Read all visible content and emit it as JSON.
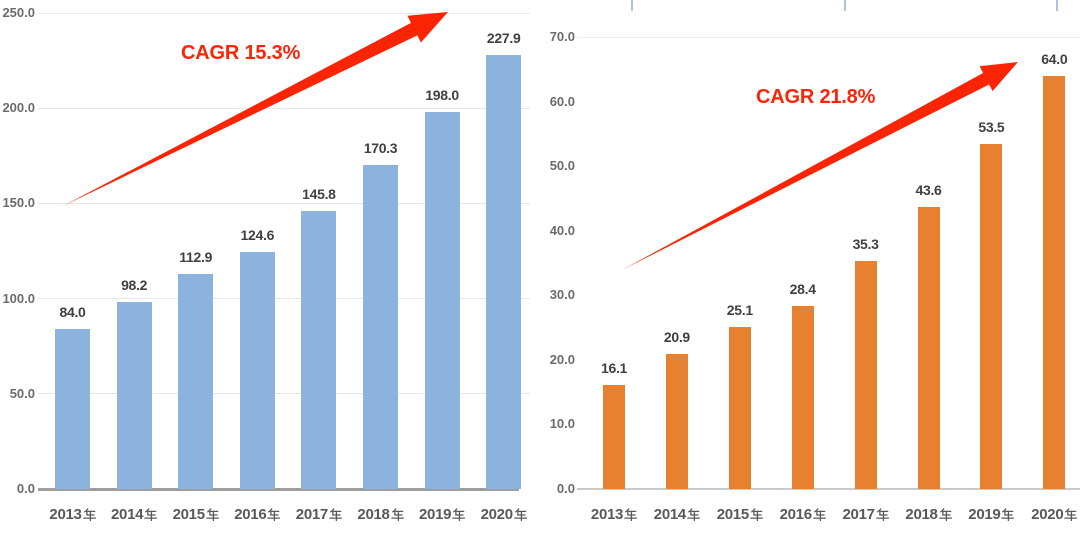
{
  "chart_data": [
    {
      "type": "bar",
      "title": "",
      "categories": [
        "2013年",
        "2014年",
        "2015年",
        "2016年",
        "2017年",
        "2018年",
        "2019年",
        "2020年"
      ],
      "values": [
        84.0,
        98.2,
        112.9,
        124.6,
        145.8,
        170.3,
        198.0,
        227.9
      ],
      "value_labels": [
        "84.0",
        "98.2",
        "112.9",
        "124.6",
        "145.8",
        "170.3",
        "198.0",
        "227.9"
      ],
      "annotation": "CAGR 15.3%",
      "xlabel": "",
      "ylabel": "",
      "ylim": [
        0,
        250
      ],
      "ytick_step": 50,
      "ytick_labels": [
        "0.0",
        "50.0",
        "100.0",
        "150.0",
        "200.0",
        "250.0"
      ],
      "bar_color": "#8cb2de",
      "grid": "all",
      "legend": "none"
    },
    {
      "type": "bar",
      "title": "",
      "categories": [
        "2013年",
        "2014年",
        "2015年",
        "2016年",
        "2017年",
        "2018年",
        "2019年",
        "2020年"
      ],
      "values": [
        16.1,
        20.9,
        25.1,
        28.4,
        35.3,
        43.6,
        53.5,
        64.0
      ],
      "value_labels": [
        "16.1",
        "20.9",
        "25.1",
        "28.4",
        "35.3",
        "43.6",
        "53.5",
        "64.0"
      ],
      "annotation": "CAGR 21.8%",
      "xlabel": "",
      "ylabel": "",
      "ylim": [
        0,
        70
      ],
      "ytick_step": 10,
      "ytick_labels": [
        "0.0",
        "10.0",
        "20.0",
        "30.0",
        "40.0",
        "50.0",
        "60.0",
        "70.0"
      ],
      "bar_color": "#e8812f",
      "grid": "top",
      "legend": "none"
    }
  ],
  "colors": {
    "arrow_red": "#fb2405",
    "annotation_red": "#fb2405",
    "axis_text": "#6b6b6b",
    "category_text": "#595959",
    "value_text": "#404040",
    "baseline_left": "#9e9e9e",
    "baseline_right": "#c9c9c9",
    "gridline": "#e7e7e7",
    "top_tick_blue": "#aec3e4"
  }
}
